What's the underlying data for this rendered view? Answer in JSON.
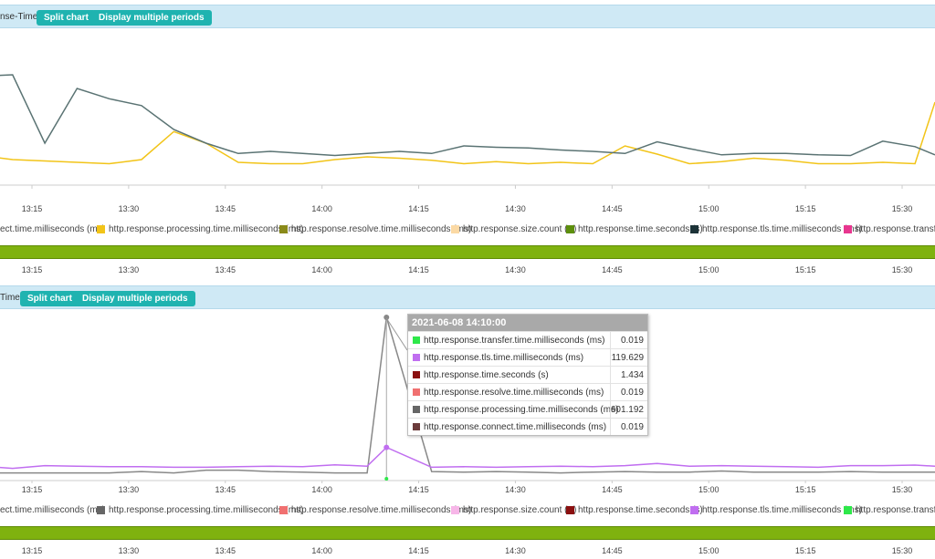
{
  "panel1": {
    "title": "nse-Time",
    "buttons": {
      "split": "Split chart",
      "multi": "Display multiple periods"
    },
    "legend": [
      {
        "label": "ect.time.milliseconds (ms)",
        "color": null
      },
      {
        "label": "http.response.processing.time.milliseconds (ms)",
        "color": "#f2c418"
      },
      {
        "label": "http.response.resolve.time.milliseconds (ms)",
        "color": "#8a8a1a"
      },
      {
        "label": "http.response.size.count (B)",
        "color": "#fbd9a4"
      },
      {
        "label": "http.response.time.seconds (s)",
        "color": "#5d8f0c"
      },
      {
        "label": "http.response.tls.time.milliseconds (ms)",
        "color": "#1c3338"
      },
      {
        "label": "http.response.transfer.ti",
        "color": "#e8368f"
      }
    ]
  },
  "panel2": {
    "title": "Time",
    "buttons": {
      "split": "Split chart",
      "multi": "Display multiple periods"
    },
    "legend": [
      {
        "label": "ect.time.milliseconds (ms)",
        "color": null
      },
      {
        "label": "http.response.processing.time.milliseconds (ms)",
        "color": "#666666"
      },
      {
        "label": "http.response.resolve.time.milliseconds (ms)",
        "color": "#f07070"
      },
      {
        "label": "http.response.size.count (B)",
        "color": "#f7b6e8"
      },
      {
        "label": "http.response.time.seconds (s)",
        "color": "#8b1010"
      },
      {
        "label": "http.response.tls.time.milliseconds (ms)",
        "color": "#c06ef0"
      },
      {
        "label": "http.response.transfer.ti",
        "color": "#2ee84a"
      }
    ],
    "tooltip": {
      "date": "2021-06-08 14:10:00",
      "rows": [
        {
          "name": "http.response.transfer.time.milliseconds (ms)",
          "value": "0.019",
          "color": "#2ee84a"
        },
        {
          "name": "http.response.tls.time.milliseconds (ms)",
          "value": "119.629",
          "color": "#c06ef0"
        },
        {
          "name": "http.response.time.seconds (s)",
          "value": "1.434",
          "color": "#8b1010"
        },
        {
          "name": "http.response.resolve.time.milliseconds (ms)",
          "value": "0.019",
          "color": "#f07070"
        },
        {
          "name": "http.response.processing.time.milliseconds (ms)",
          "value": "601.192",
          "color": "#666666"
        },
        {
          "name": "http.response.connect.time.milliseconds (ms)",
          "value": "0.019",
          "color": "#6b3b3b"
        }
      ]
    }
  },
  "time_ticks": [
    "13:15",
    "13:30",
    "13:45",
    "14:00",
    "14:15",
    "14:30",
    "14:45",
    "15:00",
    "15:15",
    "15:30"
  ],
  "chart_data": [
    {
      "type": "line",
      "x": [
        "13:07",
        "13:12",
        "13:17",
        "13:22",
        "13:27",
        "13:32",
        "13:37",
        "13:42",
        "13:47",
        "13:52",
        "13:57",
        "14:02",
        "14:07",
        "14:12",
        "14:17",
        "14:22",
        "14:27",
        "14:32",
        "14:37",
        "14:42",
        "14:47",
        "14:52",
        "14:57",
        "15:02",
        "15:07",
        "15:12",
        "15:17",
        "15:22",
        "15:27",
        "15:32",
        "15:37"
      ],
      "series": [
        {
          "name": "http.response.processing.time.milliseconds (ms)",
          "color": "#f2c418",
          "values": [
            42,
            36,
            34,
            32,
            30,
            36,
            77,
            60,
            32,
            30,
            30,
            36,
            40,
            38,
            35,
            30,
            33,
            30,
            32,
            30,
            56,
            44,
            30,
            33,
            38,
            35,
            30,
            30,
            32,
            30,
            120
          ]
        },
        {
          "name": "http.response.tls.time.milliseconds (ms)",
          "color": "#5a7373",
          "values": [
            158,
            160,
            60,
            140,
            125,
            115,
            80,
            60,
            45,
            48,
            45,
            42,
            45,
            48,
            45,
            56,
            54,
            53,
            50,
            48,
            45,
            62,
            52,
            43,
            45,
            45,
            43,
            42,
            63,
            55,
            43
          ]
        }
      ]
    },
    {
      "type": "line",
      "x": [
        "13:07",
        "13:12",
        "13:17",
        "13:22",
        "13:27",
        "13:32",
        "13:37",
        "13:42",
        "13:47",
        "13:52",
        "13:57",
        "14:02",
        "14:07",
        "14:10",
        "14:17",
        "14:22",
        "14:27",
        "14:32",
        "14:37",
        "14:42",
        "14:47",
        "14:52",
        "14:57",
        "15:02",
        "15:07",
        "15:12",
        "15:17",
        "15:22",
        "15:27",
        "15:32",
        "15:37"
      ],
      "series": [
        {
          "name": "http.response.processing.time.milliseconds (ms)",
          "color": "#888888",
          "values": [
            25,
            25,
            25,
            25,
            25,
            30,
            25,
            35,
            35,
            30,
            28,
            25,
            25,
            601.192,
            30,
            28,
            30,
            28,
            25,
            28,
            30,
            28,
            28,
            32,
            28,
            28,
            28,
            30,
            28,
            28,
            28
          ]
        },
        {
          "name": "http.response.tls.time.milliseconds (ms)",
          "color": "#c06ef0",
          "values": [
            50,
            42,
            52,
            50,
            48,
            48,
            46,
            46,
            48,
            50,
            48,
            55,
            50,
            119.629,
            46,
            48,
            46,
            48,
            50,
            48,
            52,
            60,
            50,
            52,
            50,
            48,
            46,
            52,
            52,
            54,
            50
          ]
        }
      ]
    }
  ]
}
